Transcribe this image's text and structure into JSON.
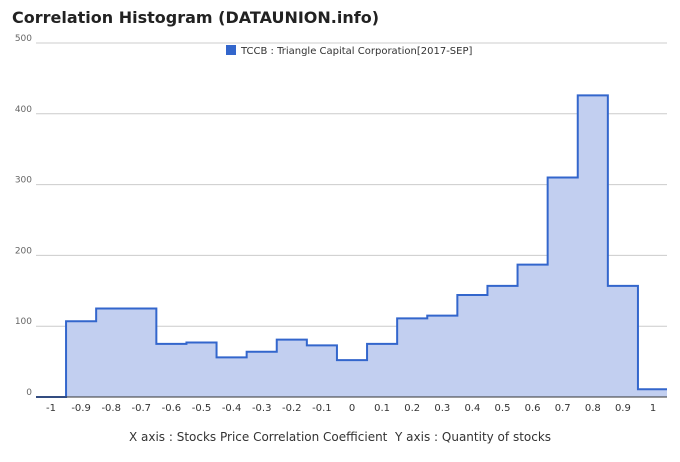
{
  "chart_data": {
    "type": "area",
    "title": "Correlation Histogram (DATAUNION.info)",
    "legend": {
      "label": "TCCB : Triangle Capital Corporation[2017-SEP]",
      "color": "#3366cc",
      "position": "top"
    },
    "xlabel": "X axis : Stocks Price Correlation Coefficient",
    "ylabel": "Y axis : Quantity of stocks",
    "x_ticks": [
      "-1",
      "-0.9",
      "-0.8",
      "-0.7",
      "-0.6",
      "-0.5",
      "-0.4",
      "-0.3",
      "-0.2",
      "-0.1",
      "0",
      "0.1",
      "0.2",
      "0.3",
      "0.4",
      "0.5",
      "0.6",
      "0.7",
      "0.8",
      "0.9",
      "1"
    ],
    "y_ticks": [
      "0",
      "100",
      "200",
      "300",
      "400",
      "500"
    ],
    "xlim": [
      -1,
      1
    ],
    "ylim": [
      0,
      500
    ],
    "grid": true,
    "line_color": "#3366cc",
    "fill_color": "#c2cff0",
    "series": [
      {
        "name": "TCCB : Triangle Capital Corporation[2017-SEP]",
        "x": [
          -1.0,
          -0.9,
          -0.8,
          -0.7,
          -0.6,
          -0.5,
          -0.4,
          -0.3,
          -0.2,
          -0.1,
          0.0,
          0.1,
          0.2,
          0.3,
          0.4,
          0.5,
          0.6,
          0.7,
          0.8,
          0.9,
          1.0
        ],
        "values": [
          0,
          107,
          125,
          125,
          75,
          77,
          56,
          64,
          81,
          73,
          52,
          75,
          111,
          115,
          144,
          157,
          187,
          310,
          426,
          157,
          11
        ]
      }
    ]
  }
}
